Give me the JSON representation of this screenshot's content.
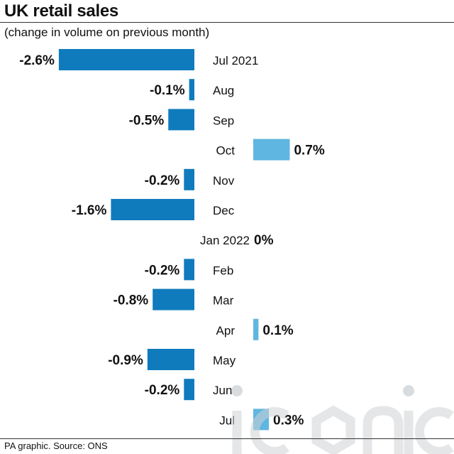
{
  "header": {
    "title": "UK retail sales",
    "subtitle": "(change in volume on previous month)"
  },
  "footer": {
    "source": "PA graphic. Source: ONS"
  },
  "watermark": {
    "text": "iconic"
  },
  "colors": {
    "negative": "#0f7bbd",
    "positive": "#5fb6e0",
    "highlight": "#5fb6e0",
    "text": "#111111"
  },
  "chart_data": {
    "type": "bar",
    "orientation": "horizontal",
    "title": "UK retail sales",
    "subtitle": "(change in volume on previous month)",
    "categories": [
      "Jul 2021",
      "Aug",
      "Sep",
      "Oct",
      "Nov",
      "Dec",
      "Jan 2022",
      "Feb",
      "Mar",
      "Apr",
      "May",
      "Jun",
      "Jul"
    ],
    "values": [
      -2.6,
      -0.1,
      -0.5,
      0.7,
      -0.2,
      -1.6,
      0,
      -0.2,
      -0.8,
      0.1,
      -0.9,
      -0.2,
      0.3
    ],
    "value_labels": [
      "-2.6%",
      "-0.1%",
      "-0.5%",
      "0.7%",
      "-0.2%",
      "-1.6%",
      "0%",
      "-0.2%",
      "-0.8%",
      "0.1%",
      "-0.9%",
      "-0.2%",
      "0.3%"
    ],
    "unit": "%",
    "grid": false,
    "legend": "none"
  }
}
